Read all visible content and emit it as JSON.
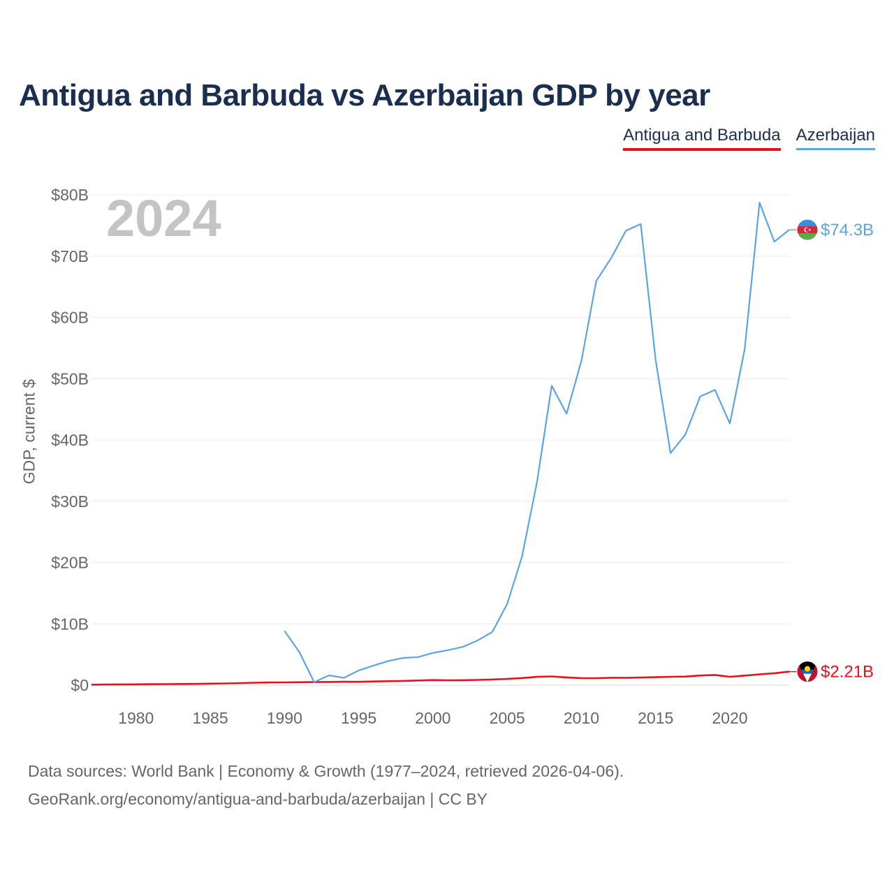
{
  "title": "Antigua and Barbuda vs Azerbaijan GDP by year",
  "legend": [
    {
      "label": "Antigua and Barbuda",
      "color": "#e8111b"
    },
    {
      "label": "Azerbaijan",
      "color": "#5ba4e6"
    }
  ],
  "year_label": "2024",
  "source_line1": "Data sources: World Bank | Economy & Growth (1977–2024, retrieved 2026-04-06).",
  "source_line2": "GeoRank.org/economy/antigua-and-barbuda/azerbaijan | CC BY",
  "chart_data": {
    "type": "line",
    "title": "Antigua and Barbuda vs Azerbaijan GDP by year",
    "xlabel": "",
    "ylabel": "GDP, current $",
    "xlim": [
      1977,
      2024
    ],
    "ylim": [
      0,
      80
    ],
    "y_unit": "billion US$",
    "x_ticks": [
      1980,
      1985,
      1990,
      1995,
      2000,
      2005,
      2010,
      2015,
      2020
    ],
    "y_ticks": [
      {
        "value": 0,
        "label": "$0"
      },
      {
        "value": 10,
        "label": "$10B"
      },
      {
        "value": 20,
        "label": "$20B"
      },
      {
        "value": 30,
        "label": "$30B"
      },
      {
        "value": 40,
        "label": "$40B"
      },
      {
        "value": 50,
        "label": "$50B"
      },
      {
        "value": 60,
        "label": "$60B"
      },
      {
        "value": 70,
        "label": "$70B"
      },
      {
        "value": 80,
        "label": "$80B"
      }
    ],
    "grid": true,
    "legend_position": "top-right",
    "series": [
      {
        "name": "Antigua and Barbuda",
        "color": "#e8111b",
        "end_label": "$2.21B",
        "flag": "antigua-and-barbuda-flag",
        "points": [
          [
            1977,
            0.08
          ],
          [
            1978,
            0.1
          ],
          [
            1979,
            0.12
          ],
          [
            1980,
            0.14
          ],
          [
            1981,
            0.16
          ],
          [
            1982,
            0.17
          ],
          [
            1983,
            0.19
          ],
          [
            1984,
            0.21
          ],
          [
            1985,
            0.25
          ],
          [
            1986,
            0.29
          ],
          [
            1987,
            0.34
          ],
          [
            1988,
            0.4
          ],
          [
            1989,
            0.45
          ],
          [
            1990,
            0.46
          ],
          [
            1991,
            0.48
          ],
          [
            1992,
            0.5
          ],
          [
            1993,
            0.52
          ],
          [
            1994,
            0.56
          ],
          [
            1995,
            0.55
          ],
          [
            1996,
            0.6
          ],
          [
            1997,
            0.65
          ],
          [
            1998,
            0.7
          ],
          [
            1999,
            0.76
          ],
          [
            2000,
            0.83
          ],
          [
            2001,
            0.8
          ],
          [
            2002,
            0.81
          ],
          [
            2003,
            0.85
          ],
          [
            2004,
            0.92
          ],
          [
            2005,
            1.02
          ],
          [
            2006,
            1.16
          ],
          [
            2007,
            1.36
          ],
          [
            2008,
            1.43
          ],
          [
            2009,
            1.26
          ],
          [
            2010,
            1.15
          ],
          [
            2011,
            1.14
          ],
          [
            2012,
            1.21
          ],
          [
            2013,
            1.2
          ],
          [
            2014,
            1.25
          ],
          [
            2015,
            1.3
          ],
          [
            2016,
            1.37
          ],
          [
            2017,
            1.4
          ],
          [
            2018,
            1.57
          ],
          [
            2019,
            1.66
          ],
          [
            2020,
            1.37
          ],
          [
            2021,
            1.56
          ],
          [
            2022,
            1.77
          ],
          [
            2023,
            1.95
          ],
          [
            2024,
            2.21
          ]
        ]
      },
      {
        "name": "Azerbaijan",
        "color": "#5ba4e6",
        "end_label": "$74.3B",
        "flag": "azerbaijan-flag",
        "points": [
          [
            1990,
            8.86
          ],
          [
            1991,
            5.4
          ],
          [
            1992,
            0.5
          ],
          [
            1993,
            1.6
          ],
          [
            1994,
            1.2
          ],
          [
            1995,
            2.4
          ],
          [
            1996,
            3.2
          ],
          [
            1997,
            3.96
          ],
          [
            1998,
            4.45
          ],
          [
            1999,
            4.58
          ],
          [
            2000,
            5.27
          ],
          [
            2001,
            5.71
          ],
          [
            2002,
            6.24
          ],
          [
            2003,
            7.28
          ],
          [
            2004,
            8.68
          ],
          [
            2005,
            13.24
          ],
          [
            2006,
            20.98
          ],
          [
            2007,
            33.05
          ],
          [
            2008,
            48.85
          ],
          [
            2009,
            44.3
          ],
          [
            2010,
            52.9
          ],
          [
            2011,
            65.95
          ],
          [
            2012,
            69.68
          ],
          [
            2013,
            74.16
          ],
          [
            2014,
            75.24
          ],
          [
            2015,
            53.07
          ],
          [
            2016,
            37.87
          ],
          [
            2017,
            40.87
          ],
          [
            2018,
            47.11
          ],
          [
            2019,
            48.17
          ],
          [
            2020,
            42.69
          ],
          [
            2021,
            54.83
          ],
          [
            2022,
            78.72
          ],
          [
            2023,
            72.36
          ],
          [
            2024,
            74.3
          ]
        ]
      }
    ]
  }
}
